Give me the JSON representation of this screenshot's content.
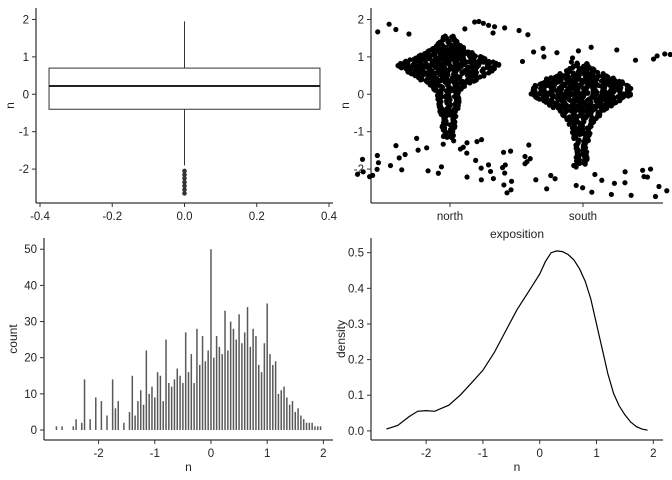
{
  "chart_data": [
    {
      "panel": "top-left",
      "type": "boxplot",
      "title": "",
      "xlabel": "",
      "ylabel": "n",
      "xlim": [
        -0.4,
        0.4
      ],
      "ylim": [
        -2.8,
        2.2
      ],
      "x_ticks": [
        "-0.4",
        "-0.2",
        "0.0",
        "0.2",
        "0.4"
      ],
      "y_ticks": [
        "2",
        "1",
        "0",
        "-1",
        "-2"
      ],
      "box": {
        "x": 0,
        "width": 0.75,
        "q1": -0.4,
        "median": 0.22,
        "q3": 0.7,
        "whisker_low": -1.9,
        "whisker_high": 1.95
      },
      "outliers": [
        -2.05,
        -2.15,
        -2.25,
        -2.35,
        -2.45,
        -2.55,
        -2.65
      ],
      "grid": false
    },
    {
      "panel": "top-right",
      "type": "beeswarm",
      "title": "",
      "xlabel": "exposition",
      "ylabel": "n",
      "categories": [
        "north",
        "south"
      ],
      "ylim": [
        -2.8,
        2.2
      ],
      "y_ticks": [
        "2",
        "1",
        "0",
        "-1",
        "-2"
      ],
      "density_profiles": [
        {
          "name": "north",
          "y": [
            1.95,
            1.6,
            1.2,
            1.0,
            0.8,
            0.6,
            0.4,
            0.2,
            0.0,
            -0.2,
            -0.4,
            -0.6,
            -0.8,
            -1.0,
            -1.2,
            -1.5,
            -1.8,
            -2.3
          ],
          "halfwidth": [
            0.02,
            0.08,
            0.3,
            0.55,
            0.87,
            0.72,
            0.5,
            0.3,
            0.2,
            0.2,
            0.18,
            0.16,
            0.14,
            0.12,
            0.1,
            0.06,
            0.04,
            0.02
          ]
        },
        {
          "name": "south",
          "y": [
            1.25,
            0.9,
            0.6,
            0.4,
            0.2,
            0.0,
            -0.2,
            -0.4,
            -0.6,
            -0.8,
            -1.0,
            -1.3,
            -1.6,
            -1.9,
            -2.2,
            -2.5,
            -2.75
          ],
          "halfwidth": [
            0.02,
            0.06,
            0.3,
            0.62,
            0.82,
            0.85,
            0.65,
            0.42,
            0.3,
            0.22,
            0.18,
            0.14,
            0.12,
            0.1,
            0.08,
            0.06,
            0.02
          ]
        }
      ],
      "grid": false
    },
    {
      "panel": "bottom-left",
      "type": "bar",
      "title": "",
      "xlabel": "n",
      "ylabel": "count",
      "xlim": [
        -2.9,
        2.1
      ],
      "ylim": [
        0,
        52
      ],
      "x_ticks": [
        "-2",
        "-1",
        "0",
        "1",
        "2"
      ],
      "y_ticks": [
        "0",
        "10",
        "20",
        "30",
        "40",
        "50"
      ],
      "bin_width": 0.025,
      "x": [
        -2.75,
        -2.65,
        -2.45,
        -2.4,
        -2.3,
        -2.25,
        -2.15,
        -2.05,
        -1.95,
        -1.85,
        -1.75,
        -1.7,
        -1.65,
        -1.55,
        -1.45,
        -1.4,
        -1.35,
        -1.3,
        -1.25,
        -1.2,
        -1.15,
        -1.1,
        -1.05,
        -1.0,
        -0.95,
        -0.9,
        -0.85,
        -0.8,
        -0.75,
        -0.7,
        -0.65,
        -0.6,
        -0.55,
        -0.5,
        -0.45,
        -0.4,
        -0.35,
        -0.3,
        -0.25,
        -0.2,
        -0.15,
        -0.1,
        -0.05,
        0.0,
        0.05,
        0.1,
        0.15,
        0.2,
        0.25,
        0.3,
        0.35,
        0.4,
        0.45,
        0.5,
        0.55,
        0.6,
        0.65,
        0.7,
        0.75,
        0.8,
        0.85,
        0.9,
        0.95,
        1.0,
        1.05,
        1.1,
        1.15,
        1.2,
        1.25,
        1.3,
        1.35,
        1.4,
        1.45,
        1.5,
        1.55,
        1.6,
        1.65,
        1.7,
        1.75,
        1.8,
        1.85,
        1.9,
        1.95
      ],
      "values": [
        1,
        1,
        1,
        3,
        2,
        14,
        3,
        9,
        8,
        4,
        14,
        6,
        8,
        2,
        5,
        15,
        4,
        8,
        11,
        7,
        22,
        10,
        12,
        9,
        16,
        15,
        8,
        25,
        13,
        12,
        14,
        17,
        15,
        13,
        27,
        16,
        21,
        13,
        28,
        18,
        26,
        19,
        22,
        50,
        20,
        26,
        23,
        21,
        33,
        22,
        30,
        28,
        25,
        32,
        24,
        27,
        34,
        23,
        28,
        26,
        18,
        16,
        24,
        35,
        21,
        18,
        19,
        10,
        11,
        12,
        9,
        7,
        8,
        5,
        6,
        4,
        3,
        2,
        2,
        2,
        1,
        1,
        1
      ],
      "grid": false
    },
    {
      "panel": "bottom-right",
      "type": "line",
      "title": "",
      "xlabel": "n",
      "ylabel": "density",
      "xlim": [
        -2.9,
        2.1
      ],
      "ylim": [
        -0.02,
        0.53
      ],
      "x_ticks": [
        "-2",
        "-1",
        "0",
        "1",
        "2"
      ],
      "y_ticks": [
        "0.0",
        "0.1",
        "0.2",
        "0.3",
        "0.4",
        "0.5"
      ],
      "x": [
        -2.7,
        -2.5,
        -2.3,
        -2.15,
        -2.0,
        -1.85,
        -1.6,
        -1.4,
        -1.2,
        -1.0,
        -0.8,
        -0.6,
        -0.4,
        -0.2,
        0.0,
        0.1,
        0.2,
        0.3,
        0.4,
        0.5,
        0.6,
        0.7,
        0.8,
        0.9,
        1.0,
        1.1,
        1.2,
        1.3,
        1.4,
        1.5,
        1.6,
        1.7,
        1.8,
        1.9
      ],
      "y": [
        0.005,
        0.015,
        0.04,
        0.055,
        0.057,
        0.055,
        0.072,
        0.1,
        0.135,
        0.17,
        0.22,
        0.28,
        0.34,
        0.39,
        0.44,
        0.475,
        0.5,
        0.505,
        0.503,
        0.495,
        0.48,
        0.455,
        0.42,
        0.37,
        0.3,
        0.23,
        0.16,
        0.105,
        0.07,
        0.045,
        0.025,
        0.012,
        0.005,
        0.002
      ],
      "grid": false
    }
  ]
}
